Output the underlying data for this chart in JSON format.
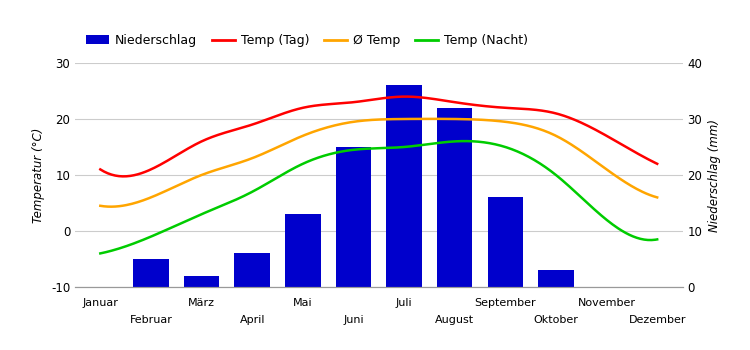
{
  "months": [
    "Januar",
    "Februar",
    "März",
    "April",
    "Mai",
    "Juni",
    "Juli",
    "August",
    "September",
    "Oktober",
    "November",
    "Dezember"
  ],
  "temp_tag": [
    11,
    11,
    16,
    19,
    22,
    23,
    24,
    23,
    22,
    21,
    17,
    12
  ],
  "temp_avg": [
    4.5,
    6,
    10,
    13,
    17,
    19.5,
    20,
    20,
    19.5,
    17,
    11,
    6
  ],
  "temp_nacht": [
    -4,
    -1,
    3,
    7,
    12,
    14.5,
    15,
    16,
    15,
    10,
    2,
    -1.5
  ],
  "bar_tops": [
    -10,
    -5,
    -8,
    -4,
    3,
    15,
    26,
    22,
    6,
    -7,
    -10,
    -10
  ],
  "temp_tag_color": "#ff0000",
  "temp_avg_color": "#ffa500",
  "temp_nacht_color": "#00cc00",
  "bar_color": "#0000cc",
  "ylabel_left": "Temperatur (°C)",
  "ylabel_right": "Niederschlag (mm)",
  "ylim_left": [
    -10,
    30
  ],
  "ylim_right": [
    0,
    40
  ],
  "yticks_left": [
    -10,
    0,
    10,
    20,
    30
  ],
  "yticks_right": [
    0,
    10,
    20,
    30,
    40
  ],
  "background_color": "#ffffff",
  "grid_color": "#cccccc",
  "legend_labels": [
    "Niederschlag",
    "Temp (Tag)",
    "Ø Temp",
    "Temp (Nacht)"
  ]
}
